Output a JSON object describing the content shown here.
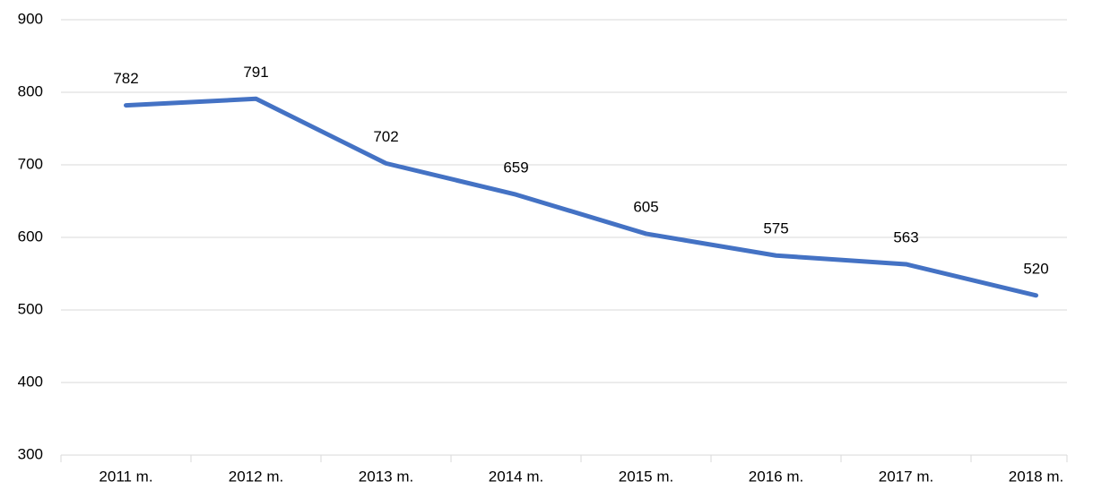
{
  "chart_data": {
    "type": "line",
    "categories": [
      "2011 m.",
      "2012 m.",
      "2013 m.",
      "2014 m.",
      "2015 m.",
      "2016 m.",
      "2017 m.",
      "2018 m."
    ],
    "values": [
      782,
      791,
      702,
      659,
      605,
      575,
      563,
      520
    ],
    "color": "#4472c4",
    "ylim": [
      300,
      900
    ],
    "yticks": [
      300,
      400,
      500,
      600,
      700,
      800,
      900
    ],
    "grid": true
  }
}
